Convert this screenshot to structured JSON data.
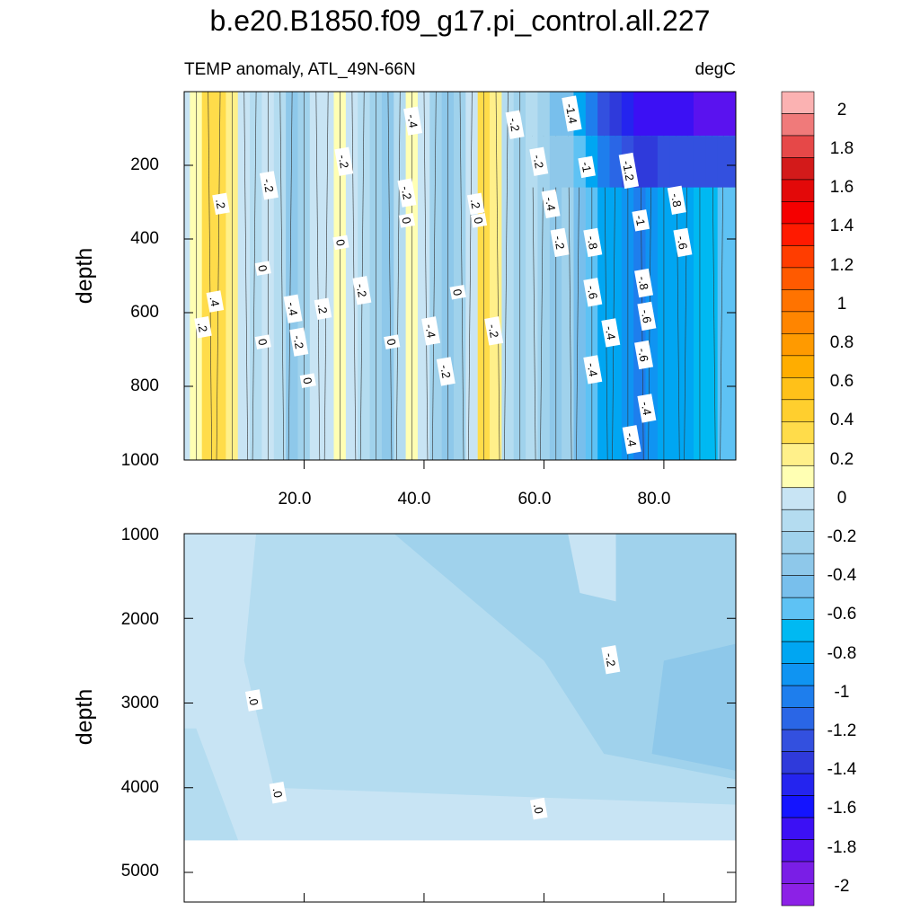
{
  "chart_data": [
    {
      "type": "heatmap",
      "panel": "upper",
      "title": "b.e20.B1850.f09_g17.pi_control.all.227",
      "subtitle_left": "TEMP anomaly, ATL_49N-66N",
      "subtitle_right": "degC",
      "xlabel": "",
      "ylabel": "depth",
      "xlim": [
        0,
        92
      ],
      "ylim": [
        1000,
        0
      ],
      "x_ticks": [
        "20.0",
        "40.0",
        "60.0",
        "80.0"
      ],
      "x_tick_values": [
        20,
        40,
        60,
        80
      ],
      "y_ticks": [
        "200",
        "400",
        "600",
        "800",
        "1000"
      ],
      "y_tick_values": [
        200,
        400,
        600,
        800,
        1000
      ],
      "column_x": [
        0,
        2,
        4,
        6,
        8,
        10,
        12,
        14,
        16,
        18,
        20,
        22,
        24,
        26,
        28,
        30,
        32,
        34,
        36,
        38,
        40,
        42,
        44,
        46,
        48,
        50,
        52,
        54,
        56,
        58,
        60,
        62,
        64,
        66,
        68,
        70,
        72,
        74,
        76,
        78,
        80,
        82,
        84,
        86,
        88,
        90,
        92
      ],
      "column_values": [
        -0.05,
        0.15,
        0.3,
        0.35,
        0.2,
        0.05,
        -0.1,
        0.02,
        -0.15,
        -0.3,
        -0.2,
        -0.05,
        0.0,
        0.1,
        0.05,
        -0.15,
        -0.25,
        -0.3,
        -0.1,
        0.1,
        0.05,
        -0.2,
        -0.3,
        -0.2,
        0.05,
        0.3,
        0.2,
        -0.1,
        -0.25,
        -0.1,
        -0.2,
        -0.3,
        -0.2,
        -0.45,
        -0.6,
        -0.75,
        -0.85,
        -0.9,
        -1.0,
        -0.95,
        -0.85,
        -0.8,
        -0.75,
        -0.7,
        -0.65,
        -0.6,
        -0.55
      ],
      "surface_min": -2.0,
      "contour_labels": [
        {
          "text": "-1.4",
          "x": 64.5,
          "y": 60
        },
        {
          "text": "-.4",
          "x": 38,
          "y": 80
        },
        {
          "text": "-.2",
          "x": 55,
          "y": 90
        },
        {
          "text": "-.2",
          "x": 26.5,
          "y": 190
        },
        {
          "text": "-.2",
          "x": 59,
          "y": 190
        },
        {
          "text": "-1",
          "x": 67,
          "y": 205
        },
        {
          "text": "-1.2",
          "x": 74,
          "y": 215
        },
        {
          "text": "-.2",
          "x": 14,
          "y": 255
        },
        {
          "text": "-.2",
          "x": 37,
          "y": 275
        },
        {
          "text": "-.4",
          "x": 61,
          "y": 305
        },
        {
          "text": ".2",
          "x": 6,
          "y": 305
        },
        {
          "text": ".2",
          "x": 48.5,
          "y": 305
        },
        {
          "text": "-.8",
          "x": 82,
          "y": 295
        },
        {
          "text": "0",
          "x": 37,
          "y": 350
        },
        {
          "text": "0",
          "x": 49,
          "y": 350
        },
        {
          "text": "-1",
          "x": 76,
          "y": 350
        },
        {
          "text": "0",
          "x": 26,
          "y": 410
        },
        {
          "text": "-.2",
          "x": 62.5,
          "y": 410
        },
        {
          "text": "-.8",
          "x": 68,
          "y": 410
        },
        {
          "text": "-.6",
          "x": 83,
          "y": 410
        },
        {
          "text": "0",
          "x": 13,
          "y": 480
        },
        {
          "text": "-.8",
          "x": 76.5,
          "y": 520
        },
        {
          "text": "-.2",
          "x": 29.5,
          "y": 540
        },
        {
          "text": "0",
          "x": 45.5,
          "y": 545
        },
        {
          "text": "-.6",
          "x": 68,
          "y": 545
        },
        {
          "text": ".4",
          "x": 5,
          "y": 570
        },
        {
          "text": "-.4",
          "x": 18,
          "y": 590
        },
        {
          "text": ".2",
          "x": 23,
          "y": 590
        },
        {
          "text": "-.6",
          "x": 77,
          "y": 610
        },
        {
          "text": ".2",
          "x": 3,
          "y": 640
        },
        {
          "text": "-.4",
          "x": 41,
          "y": 650
        },
        {
          "text": "-.2",
          "x": 51.5,
          "y": 650
        },
        {
          "text": "-.4",
          "x": 71,
          "y": 655
        },
        {
          "text": "0",
          "x": 13,
          "y": 680
        },
        {
          "text": "-.2",
          "x": 19,
          "y": 680
        },
        {
          "text": "0",
          "x": 34.5,
          "y": 680
        },
        {
          "text": "-.6",
          "x": 76.5,
          "y": 715
        },
        {
          "text": "-.2",
          "x": 43.5,
          "y": 760
        },
        {
          "text": "-.4",
          "x": 68,
          "y": 755
        },
        {
          "text": "0",
          "x": 20.5,
          "y": 785
        },
        {
          "text": "-.4",
          "x": 77,
          "y": 860
        },
        {
          "text": "-.4",
          "x": 74.5,
          "y": 945
        }
      ]
    },
    {
      "type": "heatmap",
      "panel": "lower",
      "xlabel": "",
      "ylabel": "depth",
      "xlim": [
        0,
        92
      ],
      "ylim": [
        5350,
        1000
      ],
      "y_ticks": [
        "1000",
        "2000",
        "3000",
        "4000",
        "5000"
      ],
      "y_tick_values": [
        1000,
        2000,
        3000,
        4000,
        5000
      ],
      "data_bottom_depth": 4620,
      "contour_labels": [
        {
          "text": "-.2",
          "x": 71,
          "y": 2490
        },
        {
          "text": ".0",
          "x": 11.5,
          "y": 2970
        },
        {
          "text": ".0",
          "x": 15.5,
          "y": 4060
        },
        {
          "text": ".0",
          "x": 59,
          "y": 4250
        }
      ]
    }
  ],
  "colorbar": {
    "labels": [
      "2",
      "1.8",
      "1.6",
      "1.4",
      "1.2",
      "1",
      "0.8",
      "0.6",
      "0.4",
      "0.2",
      "0",
      "-0.2",
      "-0.4",
      "-0.6",
      "-0.8",
      "-1",
      "-1.2",
      "-1.4",
      "-1.6",
      "-1.8",
      "-2"
    ],
    "colors": [
      "#fbb2b2",
      "#f07a7a",
      "#e64848",
      "#d31a1a",
      "#e30909",
      "#f50000",
      "#ff1a00",
      "#ff3d00",
      "#ff5a00",
      "#ff7300",
      "#ff8500",
      "#ff9a00",
      "#ffad00",
      "#ffc119",
      "#ffcf2e",
      "#ffdc4a",
      "#fff08a",
      "#ffffb3",
      "#c8e4f4",
      "#b4dcf0",
      "#a0d2ec",
      "#8ec8ea",
      "#78bfec",
      "#5ec2f4",
      "#00b9f2",
      "#00a6f2",
      "#0f94f2",
      "#1e7eed",
      "#2a66e6",
      "#3350df",
      "#2f3adb",
      "#2424ef",
      "#1414ff",
      "#3c10f4",
      "#5a12ef",
      "#7a1ee6",
      "#8c21e6"
    ]
  }
}
